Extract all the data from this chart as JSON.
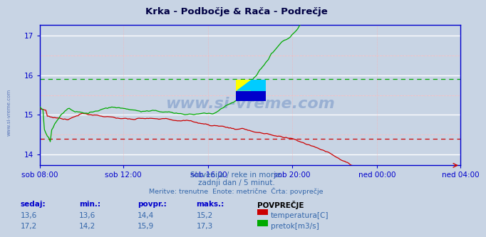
{
  "title": "Krka - Podbočje & Rača - Podrečje",
  "bg_color": "#c8d4e4",
  "plot_bg_color": "#c8d4e4",
  "grid_white": "#ffffff",
  "grid_pink": "#ffaaaa",
  "grid_pink2": "#ffcccc",
  "axis_color": "#0000cc",
  "title_color": "#000044",
  "subtitle_lines": [
    "Slovenija / reke in morje.",
    "zadnji dan / 5 minut.",
    "Meritve: trenutne  Enote: metrične  Črta: povprečje"
  ],
  "subtitle_color": "#3366aa",
  "xlabels": [
    "sob 08:00",
    "sob 12:00",
    "sob 16:00",
    "sob 20:00",
    "ned 00:00",
    "ned 04:00"
  ],
  "ylim": [
    13.72,
    17.28
  ],
  "yticks": [
    14,
    15,
    16,
    17
  ],
  "temp_avg": 14.4,
  "flow_avg": 15.9,
  "temp_color": "#cc0000",
  "flow_color": "#00aa00",
  "watermark_color": "#2255aa",
  "table_header": [
    "sedaj:",
    "min.:",
    "povpr.:",
    "maks.:",
    "POVPREČJE"
  ],
  "table_row1": [
    "13,6",
    "13,6",
    "14,4",
    "15,2"
  ],
  "table_row2": [
    "17,2",
    "14,2",
    "15,9",
    "17,3"
  ],
  "label_temp": "temperatura[C]",
  "label_flow": "pretok[m3/s]",
  "n_points": 288
}
